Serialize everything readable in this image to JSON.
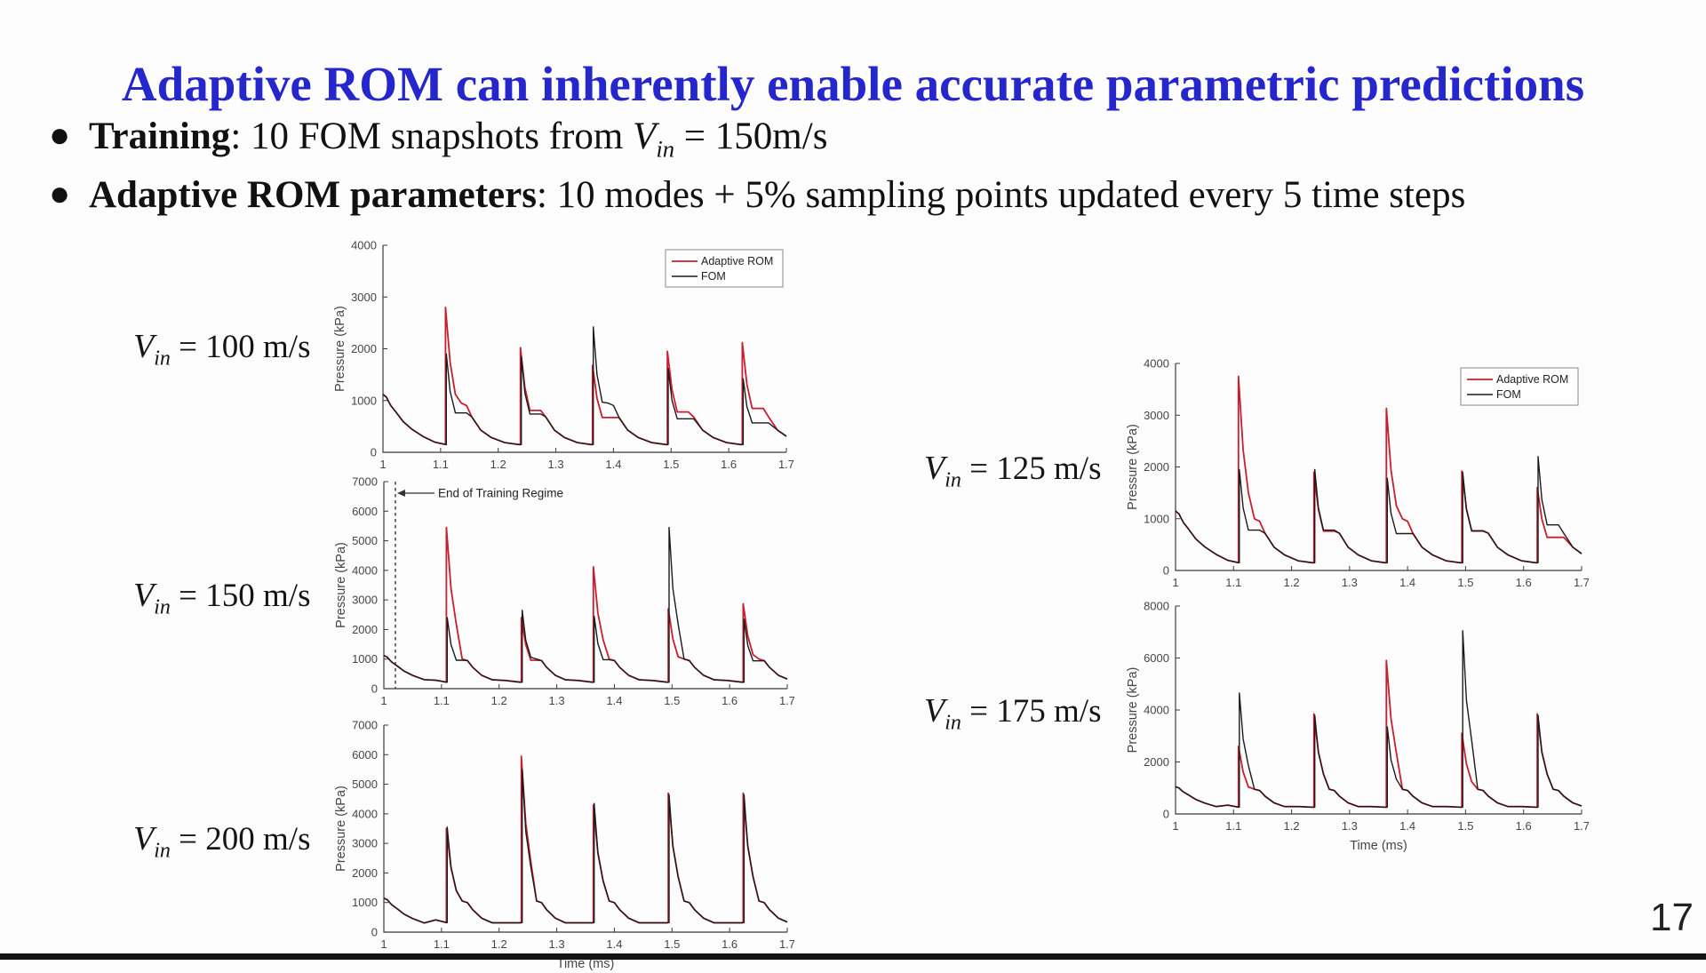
{
  "title": {
    "text": "Adaptive ROM can inherently enable accurate parametric predictions",
    "color": "#2626cd"
  },
  "bullets": [
    {
      "lead": "Training",
      "pre": ": 10 FOM snapshots from ",
      "v": {
        "base": "V",
        "sub": "in"
      },
      "post": " = 150m/s"
    },
    {
      "lead": "Adaptive ROM parameters",
      "pre": ": 10 modes + 5% sampling points updated every 5 time steps",
      "v": null,
      "post": ""
    }
  ],
  "page_number": "17",
  "colors": {
    "rom_red": "#c81e2e",
    "fom_black": "#1a1a1a",
    "axis": "#3a3a3a",
    "tick_text": "#454545"
  },
  "legend_labels": {
    "rom": "Adaptive ROM",
    "fom": "FOM"
  },
  "chart_data": [
    {
      "id": "vin100",
      "type": "line",
      "label": {
        "base": "V",
        "sub": "in",
        "text": " = 100 m/s"
      },
      "ylabel": "Pressure (kPa)",
      "xlabel": null,
      "x_range": [
        1,
        1.7
      ],
      "y_range": [
        0,
        4000
      ],
      "x_ticks": [
        "1",
        "1.1",
        "1.2",
        "1.3",
        "1.4",
        "1.5",
        "1.6",
        "1.7"
      ],
      "y_ticks": [
        0,
        1000,
        2000,
        3000,
        4000
      ],
      "legend": true,
      "annotation": null,
      "spike_times": [
        1.11,
        1.24,
        1.365,
        1.495,
        1.625
      ],
      "start_value": 1120,
      "baseline": 150,
      "knee": 950,
      "series": [
        {
          "name": "Adaptive ROM",
          "key": "rom",
          "peaks": [
            2800,
            2020,
            1680,
            1950,
            2120
          ]
        },
        {
          "name": "FOM",
          "key": "fom",
          "peaks": [
            1900,
            1850,
            2420,
            1620,
            1420
          ]
        }
      ]
    },
    {
      "id": "vin150",
      "type": "line",
      "label": {
        "base": "V",
        "sub": "in",
        "text": " = 150 m/s"
      },
      "ylabel": "Pressure (kPa)",
      "xlabel": null,
      "x_range": [
        1,
        1.7
      ],
      "y_range": [
        0,
        7000
      ],
      "x_ticks": [
        "1",
        "1.1",
        "1.2",
        "1.3",
        "1.4",
        "1.5",
        "1.6",
        "1.7"
      ],
      "y_ticks": [
        0,
        1000,
        2000,
        3000,
        4000,
        5000,
        6000,
        7000
      ],
      "legend": false,
      "annotation": {
        "text": "End of Training Regime",
        "x": 1.02
      },
      "spike_times": [
        1.11,
        1.24,
        1.365,
        1.495,
        1.625
      ],
      "start_value": 1120,
      "baseline": 220,
      "knee": 1000,
      "series": [
        {
          "name": "Adaptive ROM",
          "key": "rom",
          "peaks": [
            5450,
            2400,
            4120,
            2700,
            2870
          ]
        },
        {
          "name": "FOM",
          "key": "fom",
          "peaks": [
            2400,
            2650,
            2450,
            5450,
            2350
          ]
        }
      ]
    },
    {
      "id": "vin200",
      "type": "line",
      "label": {
        "base": "V",
        "sub": "in",
        "text": " = 200 m/s"
      },
      "ylabel": "Pressure (kPa)",
      "xlabel": "Time (ms)",
      "x_range": [
        1,
        1.7
      ],
      "y_range": [
        0,
        7000
      ],
      "x_ticks": [
        "1",
        "1.1",
        "1.2",
        "1.3",
        "1.4",
        "1.5",
        "1.6",
        "1.7"
      ],
      "y_ticks": [
        0,
        1000,
        2000,
        3000,
        4000,
        5000,
        6000,
        7000
      ],
      "legend": false,
      "annotation": null,
      "spike_times": [
        1.11,
        1.24,
        1.365,
        1.495,
        1.625
      ],
      "start_value": 1150,
      "baseline": 320,
      "knee": 1050,
      "series": [
        {
          "name": "Adaptive ROM",
          "key": "rom",
          "peaks": [
            3500,
            5950,
            4300,
            4700,
            4700
          ]
        },
        {
          "name": "FOM",
          "key": "fom",
          "peaks": [
            3550,
            5500,
            4350,
            4650,
            4650
          ]
        }
      ]
    },
    {
      "id": "vin125",
      "type": "line",
      "label": {
        "base": "V",
        "sub": "in",
        "text": " = 125 m/s"
      },
      "ylabel": "Pressure (kPa)",
      "xlabel": null,
      "x_range": [
        1,
        1.7
      ],
      "y_range": [
        0,
        4000
      ],
      "x_ticks": [
        "1",
        "1.1",
        "1.2",
        "1.3",
        "1.4",
        "1.5",
        "1.6",
        "1.7"
      ],
      "y_ticks": [
        0,
        1000,
        2000,
        3000,
        4000
      ],
      "legend": true,
      "annotation": null,
      "spike_times": [
        1.11,
        1.24,
        1.365,
        1.495,
        1.625
      ],
      "start_value": 1150,
      "baseline": 150,
      "knee": 1000,
      "series": [
        {
          "name": "Adaptive ROM",
          "key": "rom",
          "peaks": [
            3750,
            1900,
            3130,
            1920,
            1600
          ]
        },
        {
          "name": "FOM",
          "key": "fom",
          "peaks": [
            1950,
            1950,
            1780,
            1900,
            2200
          ]
        }
      ]
    },
    {
      "id": "vin175",
      "type": "line",
      "label": {
        "base": "V",
        "sub": "in",
        "text": " = 175 m/s"
      },
      "ylabel": "Pressure (kPa)",
      "xlabel": "Time (ms)",
      "x_range": [
        1,
        1.7
      ],
      "y_range": [
        0,
        8000
      ],
      "x_ticks": [
        "1",
        "1.1",
        "1.2",
        "1.3",
        "1.4",
        "1.5",
        "1.6",
        "1.7"
      ],
      "y_ticks": [
        0,
        2000,
        4000,
        6000,
        8000
      ],
      "legend": false,
      "annotation": null,
      "spike_times": [
        1.11,
        1.24,
        1.365,
        1.495,
        1.625
      ],
      "start_value": 1050,
      "baseline": 260,
      "knee": 950,
      "series": [
        {
          "name": "Adaptive ROM",
          "key": "rom",
          "peaks": [
            2600,
            3850,
            5900,
            3100,
            3850
          ]
        },
        {
          "name": "FOM",
          "key": "fom",
          "peaks": [
            4650,
            3800,
            3350,
            7050,
            3800
          ]
        }
      ]
    }
  ]
}
